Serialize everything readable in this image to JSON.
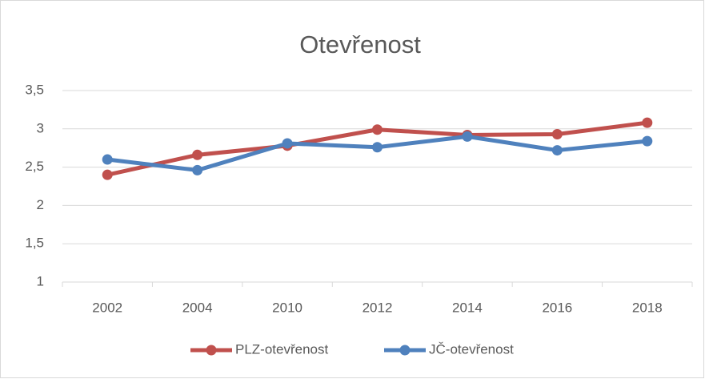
{
  "chart_data": {
    "type": "line",
    "title": "Otevřenost",
    "categories": [
      "2002",
      "2004",
      "2010",
      "2012",
      "2014",
      "2016",
      "2018"
    ],
    "series": [
      {
        "name": "PLZ-otevřenost",
        "color": "#c0504d",
        "values": [
          2.4,
          2.66,
          2.78,
          2.99,
          2.92,
          2.93,
          3.08
        ]
      },
      {
        "name": "JČ-otevřenost",
        "color": "#4f81bd",
        "values": [
          2.6,
          2.46,
          2.81,
          2.76,
          2.9,
          2.72,
          2.84
        ]
      }
    ],
    "ylim": [
      1,
      3.5
    ],
    "yticks": [
      1,
      {
        "value": 1.5,
        "label": "1,5"
      },
      2,
      {
        "value": 2.5,
        "label": "2,5"
      },
      3,
      {
        "value": 3.5,
        "label": "3,5"
      }
    ],
    "grid": true,
    "legend": "bottom"
  }
}
